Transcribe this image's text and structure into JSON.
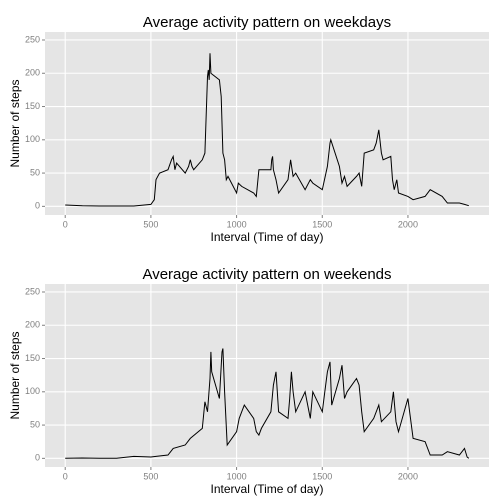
{
  "chart_data": [
    {
      "type": "line",
      "title": "Average activity pattern on weekdays",
      "xlabel": "Interval (Time of day)",
      "ylabel": "Number of steps",
      "x": [
        0,
        100,
        200,
        300,
        400,
        500,
        520,
        530,
        550,
        600,
        620,
        630,
        640,
        650,
        700,
        720,
        730,
        740,
        750,
        800,
        815,
        830,
        835,
        840,
        845,
        850,
        900,
        910,
        920,
        930,
        940,
        950,
        1000,
        1010,
        1030,
        1100,
        1115,
        1130,
        1200,
        1205,
        1210,
        1215,
        1230,
        1245,
        1300,
        1315,
        1330,
        1345,
        1400,
        1430,
        1445,
        1500,
        1530,
        1545,
        1550,
        1600,
        1615,
        1630,
        1645,
        1700,
        1715,
        1730,
        1745,
        1800,
        1815,
        1830,
        1845,
        1855,
        1900,
        1910,
        1920,
        1935,
        1945,
        2000,
        2030,
        2100,
        2130,
        2200,
        2230,
        2300,
        2330,
        2355
      ],
      "series": [
        {
          "name": "weekday",
          "color": "#000000",
          "values": [
            2,
            1,
            0.5,
            0.5,
            0.5,
            3,
            10,
            40,
            50,
            55,
            70,
            75,
            55,
            65,
            50,
            60,
            70,
            60,
            55,
            70,
            80,
            195,
            205,
            190,
            230,
            200,
            190,
            165,
            80,
            70,
            40,
            45,
            20,
            35,
            30,
            20,
            15,
            55,
            55,
            70,
            75,
            55,
            40,
            20,
            40,
            70,
            45,
            50,
            25,
            40,
            35,
            25,
            60,
            95,
            100,
            60,
            35,
            45,
            30,
            45,
            50,
            30,
            80,
            85,
            95,
            115,
            80,
            70,
            75,
            40,
            25,
            40,
            20,
            15,
            10,
            15,
            25,
            15,
            5,
            5,
            3,
            1
          ]
        }
      ],
      "xlim": [
        -118,
        2473
      ],
      "xticks": [
        0,
        500,
        1000,
        1500,
        2000
      ],
      "ylim": [
        -13,
        262
      ],
      "yticks": [
        0,
        50,
        100,
        150,
        200,
        250
      ],
      "grid": true
    },
    {
      "type": "line",
      "title": "Average activity pattern on weekends",
      "xlabel": "Interval (Time of day)",
      "ylabel": "Number of steps",
      "x": [
        0,
        100,
        200,
        300,
        400,
        500,
        530,
        600,
        630,
        700,
        730,
        800,
        815,
        830,
        845,
        850,
        855,
        900,
        915,
        920,
        930,
        945,
        1000,
        1015,
        1030,
        1045,
        1100,
        1115,
        1130,
        1145,
        1200,
        1215,
        1230,
        1245,
        1300,
        1310,
        1320,
        1330,
        1345,
        1400,
        1415,
        1430,
        1445,
        1500,
        1515,
        1530,
        1545,
        1555,
        1600,
        1615,
        1630,
        1645,
        1700,
        1715,
        1730,
        1745,
        1800,
        1830,
        1845,
        1900,
        1915,
        1930,
        1945,
        2000,
        2015,
        2030,
        2100,
        2130,
        2200,
        2230,
        2300,
        2330,
        2345,
        2355
      ],
      "series": [
        {
          "name": "weekend",
          "color": "#000000",
          "values": [
            0,
            0.5,
            0,
            0,
            3,
            2,
            3,
            5,
            15,
            20,
            30,
            45,
            85,
            70,
            120,
            160,
            130,
            90,
            160,
            165,
            100,
            20,
            40,
            60,
            70,
            80,
            60,
            40,
            35,
            45,
            70,
            110,
            130,
            70,
            60,
            90,
            130,
            100,
            70,
            100,
            80,
            60,
            100,
            70,
            100,
            130,
            145,
            80,
            120,
            140,
            90,
            100,
            120,
            110,
            70,
            40,
            60,
            80,
            55,
            70,
            100,
            55,
            40,
            90,
            60,
            30,
            25,
            5,
            5,
            10,
            5,
            15,
            2,
            0
          ]
        }
      ],
      "xlim": [
        -118,
        2473
      ],
      "xticks": [
        0,
        500,
        1000,
        1500,
        2000
      ],
      "ylim": [
        -13,
        262
      ],
      "yticks": [
        0,
        50,
        100,
        150,
        200,
        250
      ],
      "grid": true
    }
  ]
}
